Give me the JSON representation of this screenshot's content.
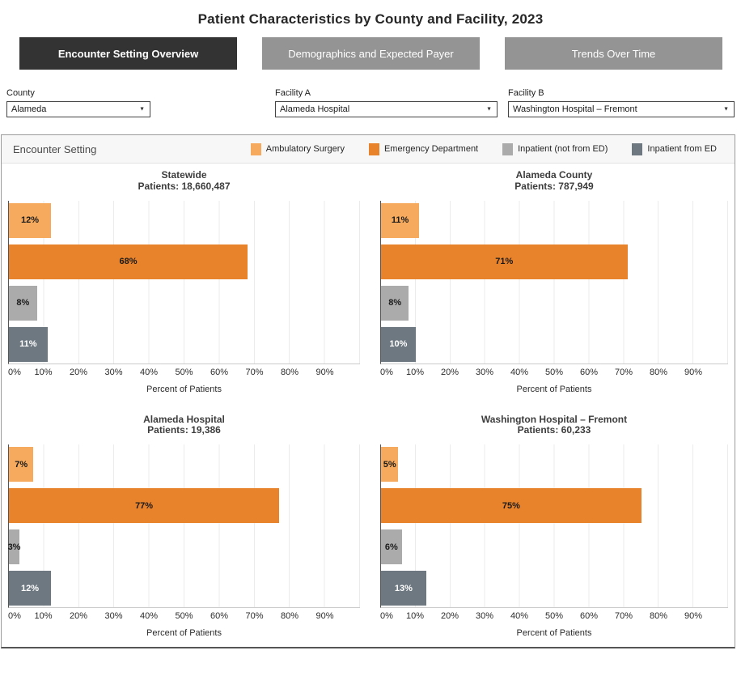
{
  "page": {
    "title": "Patient Characteristics by County and Facility, 2023"
  },
  "tabs": [
    {
      "label": "Encounter Setting Overview",
      "active": true
    },
    {
      "label": "Demographics and Expected Payer",
      "active": false
    },
    {
      "label": "Trends Over Time",
      "active": false
    }
  ],
  "filters": {
    "county": {
      "label": "County",
      "value": "Alameda"
    },
    "facility_a": {
      "label": "Facility A",
      "value": "Alameda Hospital"
    },
    "facility_b": {
      "label": "Facility B",
      "value": "Washington Hospital – Fremont"
    }
  },
  "legend": {
    "title": "Encounter Setting",
    "items": [
      {
        "label": "Ambulatory Surgery",
        "color": "#F5AA5D"
      },
      {
        "label": "Emergency Department",
        "color": "#E8822B"
      },
      {
        "label": "Inpatient (not from ED)",
        "color": "#ABABAB"
      },
      {
        "label": "Inpatient from ED",
        "color": "#6E7881"
      }
    ]
  },
  "chart_data": {
    "type": "bar",
    "orientation": "horizontal",
    "categories": [
      "Ambulatory Surgery",
      "Emergency Department",
      "Inpatient (not from ED)",
      "Inpatient from ED"
    ],
    "colors": [
      "#F5AA5D",
      "#E8822B",
      "#ABABAB",
      "#6E7881"
    ],
    "label_colors": [
      "#1a1a1a",
      "#1a1a1a",
      "#1a1a1a",
      "#ffffff"
    ],
    "xlabel": "Percent of Patients",
    "x_ticks": [
      "0%",
      "10%",
      "20%",
      "30%",
      "40%",
      "50%",
      "60%",
      "70%",
      "80%",
      "90%"
    ],
    "xlim": [
      0,
      100
    ],
    "grid": true,
    "legend_position": "top",
    "charts": [
      {
        "title": "Statewide",
        "subtitle": "Patients: 18,660,487",
        "values": [
          12,
          68,
          8,
          11
        ]
      },
      {
        "title": "Alameda County",
        "subtitle": "Patients: 787,949",
        "values": [
          11,
          71,
          8,
          10
        ]
      },
      {
        "title": "Alameda Hospital",
        "subtitle": "Patients: 19,386",
        "values": [
          7,
          77,
          3,
          12
        ]
      },
      {
        "title": "Washington Hospital – Fremont",
        "subtitle": "Patients: 60,233",
        "values": [
          5,
          75,
          6,
          13
        ]
      }
    ]
  }
}
